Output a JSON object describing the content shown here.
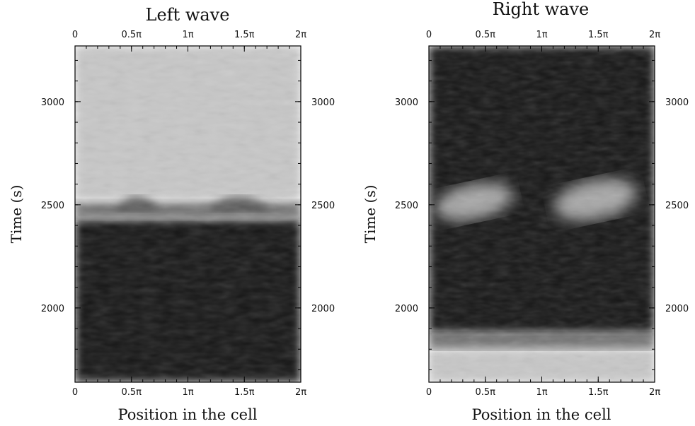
{
  "chart_data": [
    {
      "type": "heatmap",
      "title": "Left wave",
      "xlabel": "Position in the cell",
      "ylabel": "Time (s)",
      "xlim": [
        0,
        2
      ],
      "x_unit": "π",
      "x_ticks": [
        0,
        0.5,
        1,
        1.5,
        2
      ],
      "x_tick_labels": [
        "0",
        "0.5π",
        "1π",
        "1.5π",
        "2π"
      ],
      "ylim": [
        1640,
        3270
      ],
      "y_ticks": [
        2000,
        2500,
        3000
      ],
      "y_tick_labels": [
        "2000",
        "2500",
        "3000"
      ],
      "colormap": "grayscale",
      "intensity_bands": [
        {
          "t_start": 1640,
          "t_end": 2430,
          "level": 0.08
        },
        {
          "t_start": 2430,
          "t_end": 2520,
          "level": 0.45
        },
        {
          "t_start": 2520,
          "t_end": 3270,
          "level": 0.78
        }
      ],
      "features": [
        {
          "kind": "dark-hump",
          "x_start": 0.35,
          "x_end": 0.75,
          "t_peak": 2560,
          "t_base": 2470
        },
        {
          "kind": "dark-hump",
          "x_start": 1.15,
          "x_end": 1.75,
          "t_peak": 2560,
          "t_base": 2470
        }
      ]
    },
    {
      "type": "heatmap",
      "title": "Right wave",
      "xlabel": "Position in the cell",
      "ylabel": "Time (s)",
      "xlim": [
        0,
        2
      ],
      "x_unit": "π",
      "x_ticks": [
        0,
        0.5,
        1,
        1.5,
        2
      ],
      "x_tick_labels": [
        "0",
        "0.5π",
        "1π",
        "1.5π",
        "2π"
      ],
      "ylim": [
        1640,
        3270
      ],
      "y_ticks": [
        2000,
        2500,
        3000
      ],
      "y_tick_labels": [
        "2000",
        "2500",
        "3000"
      ],
      "colormap": "grayscale",
      "intensity_bands": [
        {
          "t_start": 1640,
          "t_end": 1800,
          "level": 0.78
        },
        {
          "t_start": 1800,
          "t_end": 1880,
          "level": 0.45
        },
        {
          "t_start": 1880,
          "t_end": 3270,
          "level": 0.08
        }
      ],
      "features": [
        {
          "kind": "bright-blob",
          "x_start": 0.05,
          "x_end": 0.75,
          "t_top": 2600,
          "t_bottom": 2430
        },
        {
          "kind": "bright-blob",
          "x_start": 1.1,
          "x_end": 1.85,
          "t_top": 2620,
          "t_bottom": 2430
        }
      ]
    }
  ]
}
